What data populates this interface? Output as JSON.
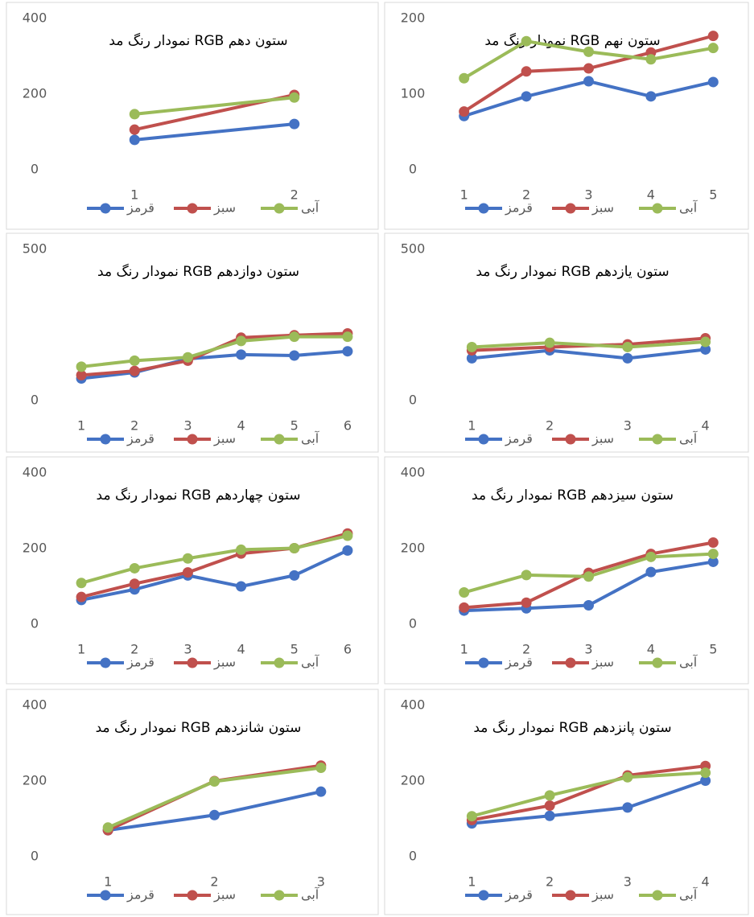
{
  "chart_data": [
    {
      "type": "line",
      "title": "نمودار رنگ مد RGB ستون دهم",
      "categories": [
        "1",
        "2"
      ],
      "series": [
        {
          "name": "قرمز",
          "color": "#4472c4",
          "values": [
            79,
            121
          ]
        },
        {
          "name": "سبز",
          "color": "#c0504d",
          "values": [
            106,
            198
          ]
        },
        {
          "name": "آبی",
          "color": "#9bbb59",
          "values": [
            147,
            191
          ]
        }
      ],
      "ylim": [
        0,
        400
      ],
      "yticks": [
        0,
        200,
        400
      ]
    },
    {
      "type": "line",
      "title": "نمودار رنگ مد RGB ستون نهم",
      "categories": [
        "1",
        "2",
        "3",
        "4",
        "5"
      ],
      "series": [
        {
          "name": "قرمز",
          "color": "#4472c4",
          "values": [
            71,
            97,
            117,
            97,
            116
          ]
        },
        {
          "name": "سبز",
          "color": "#c0504d",
          "values": [
            77,
            130,
            134,
            155,
            177
          ]
        },
        {
          "name": "آبی",
          "color": "#9bbb59",
          "values": [
            121,
            170,
            156,
            146,
            161
          ]
        }
      ],
      "ylim": [
        0,
        200
      ],
      "yticks": [
        0,
        100,
        200
      ]
    },
    {
      "type": "line",
      "title": "نمودار رنگ مد RGB ستون دوازدهم",
      "categories": [
        "1",
        "2",
        "3",
        "4",
        "5",
        "6"
      ],
      "series": [
        {
          "name": "قرمز",
          "color": "#4472c4",
          "values": [
            73,
            93,
            138,
            152,
            149,
            163
          ]
        },
        {
          "name": "سبز",
          "color": "#c0504d",
          "values": [
            84,
            98,
            132,
            208,
            216,
            222
          ]
        },
        {
          "name": "آبی",
          "color": "#9bbb59",
          "values": [
            112,
            132,
            143,
            197,
            211,
            211
          ]
        }
      ],
      "ylim": [
        0,
        500
      ],
      "yticks": [
        0,
        500
      ]
    },
    {
      "type": "line",
      "title": "نمودار رنگ مد RGB ستون یازدهم",
      "categories": [
        "1",
        "2",
        "3",
        "4"
      ],
      "series": [
        {
          "name": "قرمز",
          "color": "#4472c4",
          "values": [
            140,
            166,
            140,
            169
          ]
        },
        {
          "name": "سبز",
          "color": "#c0504d",
          "values": [
            166,
            177,
            186,
            206
          ]
        },
        {
          "name": "آبی",
          "color": "#9bbb59",
          "values": [
            177,
            191,
            177,
            194
          ]
        }
      ],
      "ylim": [
        0,
        500
      ],
      "yticks": [
        0,
        500
      ]
    },
    {
      "type": "line",
      "title": "نمودار رنگ مد RGB ستون چهاردهم",
      "categories": [
        "1",
        "2",
        "3",
        "4",
        "5",
        "6"
      ],
      "series": [
        {
          "name": "قرمز",
          "color": "#4472c4",
          "values": [
            64,
            92,
            129,
            100,
            129,
            195
          ]
        },
        {
          "name": "سبز",
          "color": "#c0504d",
          "values": [
            72,
            107,
            137,
            187,
            201,
            240
          ]
        },
        {
          "name": "آبی",
          "color": "#9bbb59",
          "values": [
            109,
            148,
            174,
            197,
            201,
            234
          ]
        }
      ],
      "ylim": [
        0,
        400
      ],
      "yticks": [
        0,
        200,
        400
      ]
    },
    {
      "type": "line",
      "title": "نمودار رنگ مد RGB ستون سیزدهم",
      "categories": [
        "1",
        "2",
        "3",
        "4",
        "5"
      ],
      "series": [
        {
          "name": "قرمز",
          "color": "#4472c4",
          "values": [
            36,
            42,
            50,
            138,
            165
          ]
        },
        {
          "name": "سبز",
          "color": "#c0504d",
          "values": [
            44,
            57,
            136,
            186,
            216
          ]
        },
        {
          "name": "آبی",
          "color": "#9bbb59",
          "values": [
            84,
            130,
            126,
            178,
            186
          ]
        }
      ],
      "ylim": [
        0,
        400
      ],
      "yticks": [
        0,
        200,
        400
      ]
    },
    {
      "type": "line",
      "title": "نمودار رنگ مد RGB ستون شانزدهم",
      "categories": [
        "1",
        "2",
        "3"
      ],
      "series": [
        {
          "name": "قرمز",
          "color": "#4472c4",
          "values": [
            70,
            110,
            172
          ]
        },
        {
          "name": "سبز",
          "color": "#c0504d",
          "values": [
            70,
            200,
            241
          ]
        },
        {
          "name": "آبی",
          "color": "#9bbb59",
          "values": [
            77,
            199,
            235
          ]
        }
      ],
      "ylim": [
        0,
        400
      ],
      "yticks": [
        0,
        200,
        400
      ]
    },
    {
      "type": "line",
      "title": "نمودار رنگ مد RGB ستون پانزدهم",
      "categories": [
        "1",
        "2",
        "3",
        "4"
      ],
      "series": [
        {
          "name": "قرمز",
          "color": "#4472c4",
          "values": [
            88,
            108,
            130,
            201
          ]
        },
        {
          "name": "سبز",
          "color": "#c0504d",
          "values": [
            97,
            135,
            215,
            240
          ]
        },
        {
          "name": "آبی",
          "color": "#9bbb59",
          "values": [
            107,
            162,
            210,
            222
          ]
        }
      ],
      "ylim": [
        0,
        400
      ],
      "yticks": [
        0,
        200,
        400
      ]
    }
  ]
}
